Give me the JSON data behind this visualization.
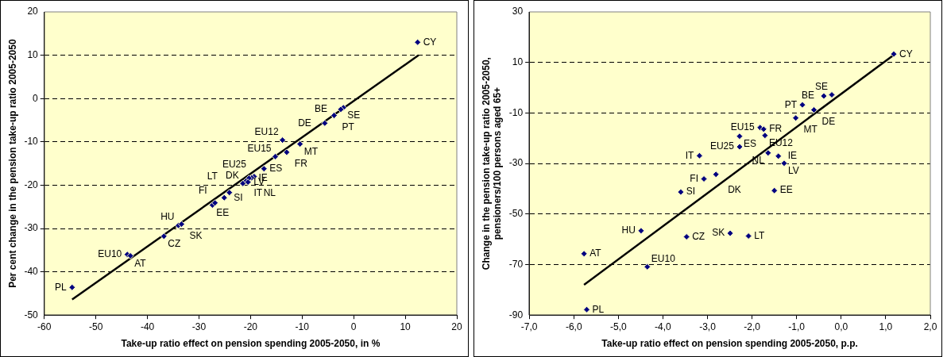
{
  "chart_data": [
    {
      "type": "scatter",
      "xlabel": "Take-up ratio effect on pension spending 2005-2050, in %",
      "ylabel": "Per cent change in the pension take-up ratio 2005-2050",
      "xlim": [
        -60,
        20
      ],
      "xticks": [
        -60,
        -50,
        -40,
        -30,
        -20,
        -10,
        0,
        10,
        20
      ],
      "ylim": [
        -50,
        20
      ],
      "yticks": [
        -50,
        -40,
        -30,
        -20,
        -10,
        0,
        10,
        20
      ],
      "grid": "y",
      "legend": false,
      "series": [
        {
          "marker": "diamond",
          "color": "#000080",
          "x": [
            12.4,
            -2.0,
            -2.5,
            -3.8,
            -5.6,
            -13.8,
            -10.4,
            -13.0,
            -15.2,
            -17.4,
            -19.3,
            -19.8,
            -20.3,
            -20.9,
            -21.5,
            -20.5,
            -27.4,
            -26.9,
            -25.1,
            -24.1,
            -34.0,
            -33.4,
            -36.8,
            -43.9,
            -43.3,
            -54.6
          ],
          "values": [
            13.0,
            -2.1,
            -2.5,
            -3.9,
            -5.7,
            -9.6,
            -10.5,
            -12.4,
            -13.4,
            -16.2,
            -18.0,
            -18.3,
            -18.4,
            -19.1,
            -19.6,
            -19.3,
            -24.6,
            -24.1,
            -22.9,
            -21.7,
            -29.3,
            -29.0,
            -31.8,
            -36.0,
            -36.3,
            -43.6
          ]
        },
        {
          "type": "line",
          "color": "#000000",
          "x": [
            -54.6,
            12.6
          ],
          "values": [
            -46.4,
            10.0
          ]
        }
      ],
      "annotations": [
        {
          "text": "CY",
          "x": 12.4,
          "y": 13.0
        },
        {
          "text": "SE",
          "x": -2.0,
          "y": -2.1
        },
        {
          "text": "BE",
          "x": -2.5,
          "y": -2.5
        },
        {
          "text": "PT",
          "x": -3.8,
          "y": -3.9
        },
        {
          "text": "DE",
          "x": -5.6,
          "y": -5.7
        },
        {
          "text": "EU12",
          "x": -13.8,
          "y": -9.6
        },
        {
          "text": "MT",
          "x": -10.4,
          "y": -10.5
        },
        {
          "text": "FR",
          "x": -13.0,
          "y": -12.4
        },
        {
          "text": "EU15",
          "x": -15.2,
          "y": -13.4
        },
        {
          "text": "ES",
          "x": -17.4,
          "y": -16.2
        },
        {
          "text": "EU25",
          "x": -19.3,
          "y": -18.0
        },
        {
          "text": "NL",
          "x": -19.8,
          "y": -18.3
        },
        {
          "text": "IE",
          "x": -20.3,
          "y": -18.4
        },
        {
          "text": "IT",
          "x": -20.9,
          "y": -19.1
        },
        {
          "text": "DK",
          "x": -21.5,
          "y": -19.6
        },
        {
          "text": "LV",
          "x": -20.5,
          "y": -19.3
        },
        {
          "text": "EE",
          "x": -27.4,
          "y": -24.6
        },
        {
          "text": "FI",
          "x": -26.9,
          "y": -24.1
        },
        {
          "text": "SI",
          "x": -25.1,
          "y": -22.9
        },
        {
          "text": "LT",
          "x": -24.1,
          "y": -21.7
        },
        {
          "text": "HU",
          "x": -34.0,
          "y": -29.3
        },
        {
          "text": "SK",
          "x": -33.4,
          "y": -29.0
        },
        {
          "text": "CZ",
          "x": -36.8,
          "y": -31.8
        },
        {
          "text": "EU10",
          "x": -43.9,
          "y": -36.0
        },
        {
          "text": "AT",
          "x": -43.3,
          "y": -36.3
        },
        {
          "text": "PL",
          "x": -54.6,
          "y": -43.6
        }
      ]
    },
    {
      "type": "scatter",
      "xlabel": "Take-up ratio effect on pension spending 2005-2050, p.p.",
      "ylabel": "Change in the pension take-up ratio 2005-2050, pensioners/100 persons aged 65+",
      "xlim": [
        -7,
        2
      ],
      "xticks": [
        {
          "value": -7,
          "label": "-7,0"
        },
        {
          "value": -6,
          "label": "-6,0"
        },
        {
          "value": -5,
          "label": "-5,0"
        },
        {
          "value": -4,
          "label": "-4,0"
        },
        {
          "value": -3,
          "label": "-3,0"
        },
        {
          "value": -2,
          "label": "-2,0"
        },
        {
          "value": -1,
          "label": "-1,0"
        },
        {
          "value": 0,
          "label": "0,0"
        },
        {
          "value": 1,
          "label": "1,0"
        },
        {
          "value": 2,
          "label": "2,0"
        }
      ],
      "ylim": [
        -90,
        30
      ],
      "yticks": [
        -90,
        -70,
        -50,
        -30,
        -10,
        10,
        30
      ],
      "grid": "y",
      "legend": false,
      "series": [
        {
          "marker": "diamond",
          "color": "#000080",
          "x": [
            1.18,
            -0.21,
            -0.39,
            -0.87,
            -0.61,
            -1.02,
            -1.82,
            -1.74,
            -1.71,
            -2.28,
            -2.28,
            -3.18,
            -1.64,
            -1.41,
            -1.28,
            -2.81,
            -3.08,
            -3.6,
            -1.5,
            -4.49,
            -2.49,
            -2.08,
            -3.47,
            -5.77,
            -4.35,
            -5.71
          ],
          "values": [
            13.3,
            -2.8,
            -3.3,
            -6.8,
            -8.8,
            -12.0,
            -15.8,
            -16.4,
            -18.9,
            -19.2,
            -23.4,
            -26.9,
            -25.8,
            -27.1,
            -29.9,
            -34.3,
            -36.1,
            -41.3,
            -40.7,
            -56.6,
            -57.6,
            -58.7,
            -59.0,
            -65.7,
            -70.9,
            -87.8
          ]
        },
        {
          "type": "line",
          "color": "#000000",
          "x": [
            -5.77,
            1.18
          ],
          "values": [
            -78.0,
            13.0
          ]
        }
      ],
      "annotations": [
        {
          "text": "CY",
          "x": 1.18,
          "y": 13.3
        },
        {
          "text": "SE",
          "x": -0.21,
          "y": -2.8
        },
        {
          "text": "BE",
          "x": -0.39,
          "y": -3.3
        },
        {
          "text": "PT",
          "x": -0.87,
          "y": -6.8
        },
        {
          "text": "DE",
          "x": -0.61,
          "y": -8.8
        },
        {
          "text": "MT",
          "x": -1.02,
          "y": -12.0
        },
        {
          "text": "EU15",
          "x": -1.82,
          "y": -15.8
        },
        {
          "text": "FR",
          "x": -1.74,
          "y": -16.4
        },
        {
          "text": "EU12",
          "x": -1.71,
          "y": -18.9
        },
        {
          "text": "ES",
          "x": -2.28,
          "y": -19.2
        },
        {
          "text": "EU25",
          "x": -2.28,
          "y": -23.4
        },
        {
          "text": "IT",
          "x": -3.18,
          "y": -26.9
        },
        {
          "text": "NL",
          "x": -1.64,
          "y": -25.8
        },
        {
          "text": "IE",
          "x": -1.41,
          "y": -27.1
        },
        {
          "text": "LV",
          "x": -1.28,
          "y": -29.9
        },
        {
          "text": "DK",
          "x": -2.81,
          "y": -34.3
        },
        {
          "text": "FI",
          "x": -3.08,
          "y": -36.1
        },
        {
          "text": "SI",
          "x": -3.6,
          "y": -41.3
        },
        {
          "text": "EE",
          "x": -1.5,
          "y": -40.7
        },
        {
          "text": "HU",
          "x": -4.49,
          "y": -56.6
        },
        {
          "text": "SK",
          "x": -2.49,
          "y": -57.6
        },
        {
          "text": "LT",
          "x": -2.08,
          "y": -58.7
        },
        {
          "text": "CZ",
          "x": -3.47,
          "y": -59.0
        },
        {
          "text": "AT",
          "x": -5.77,
          "y": -65.7
        },
        {
          "text": "EU10",
          "x": -4.35,
          "y": -70.9
        },
        {
          "text": "PL",
          "x": -5.71,
          "y": -87.8
        }
      ]
    }
  ]
}
